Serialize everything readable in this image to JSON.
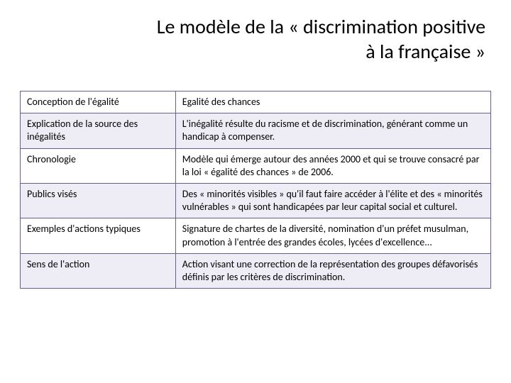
{
  "title_line1": "Le modèle de la « discrimination positive",
  "title_line2": "à la française »",
  "table": {
    "border_color": "#6b5b95",
    "alt_row_bg": "#eeecf4",
    "rows": [
      {
        "label": "Conception de l'égalité",
        "value": "Egalité des chances",
        "alt": false
      },
      {
        "label": "Explication de la source des inégalités",
        "value": "L'inégalité résulte du racisme et de discrimination, générant comme un handicap à compenser.",
        "alt": true
      },
      {
        "label": "Chronologie",
        "value": "Modèle qui émerge autour des années 2000 et qui se trouve consacré par la loi « égalité des chances » de 2006.",
        "alt": false
      },
      {
        "label": "Publics visés",
        "value": "Des « minorités visibles » qu'il faut faire accéder à l'élite et des « minorités vulnérables » qui sont handicapées par leur capital social et culturel.",
        "alt": true
      },
      {
        "label": "Exemples d'actions typiques",
        "value": "Signature de chartes de la diversité, nomination d'un préfet musulman, promotion à l'entrée des grandes écoles, lycées d'excellence...",
        "alt": false
      },
      {
        "label": "Sens de l'action",
        "value": "Action visant une correction de la représentation des groupes défavorisés définis par les critères de discrimination.",
        "alt": true
      }
    ]
  }
}
